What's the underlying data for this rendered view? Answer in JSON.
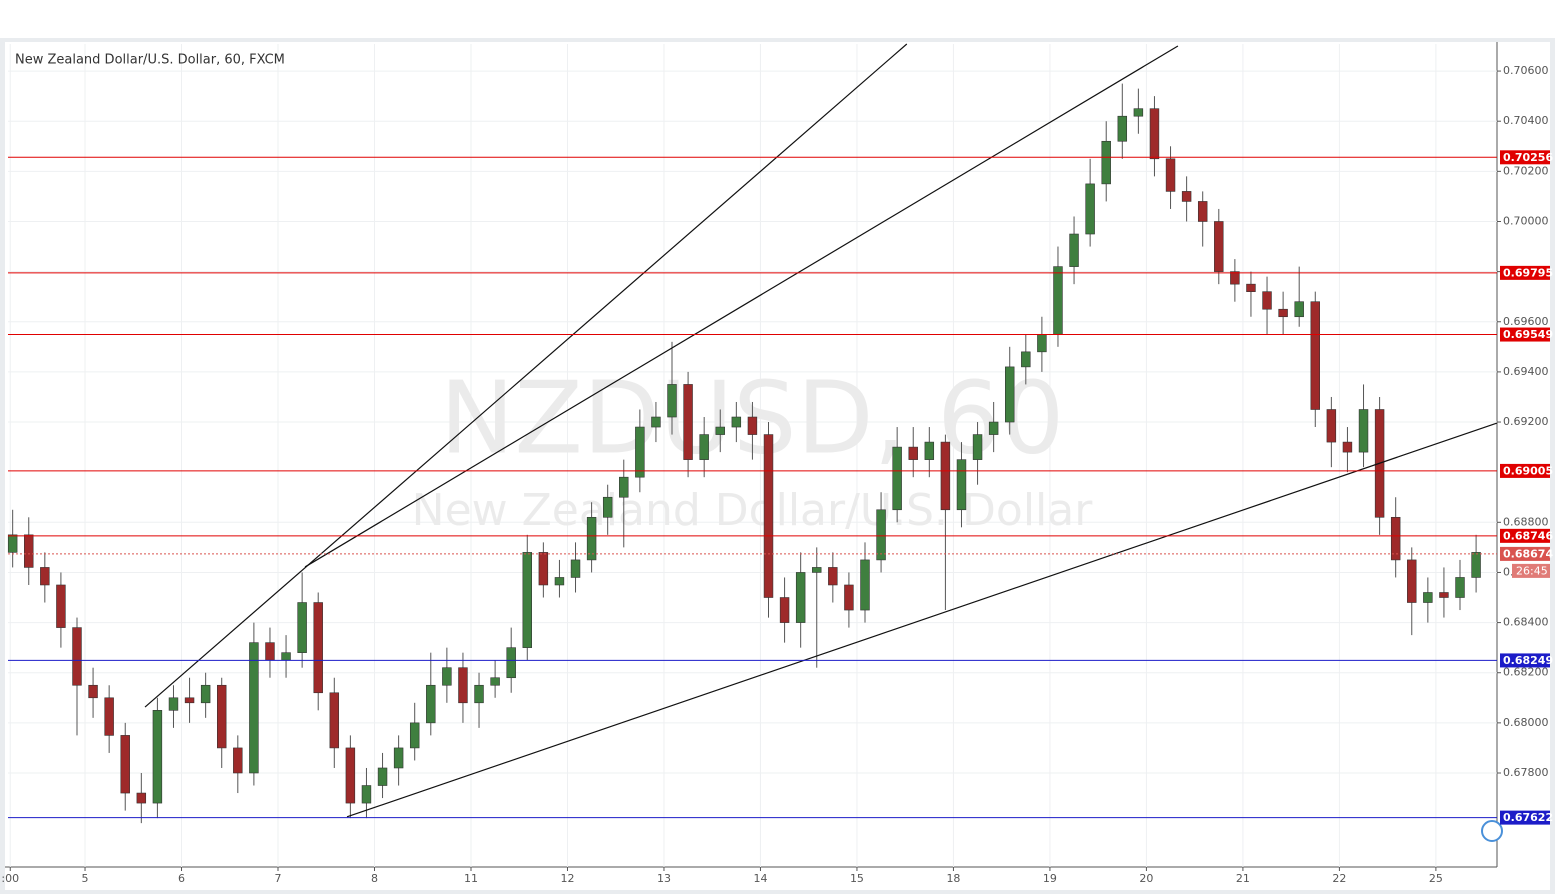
{
  "chart_data": {
    "type": "candlestick",
    "title": "New Zealand Dollar/U.S. Dollar, 60, FXCM",
    "watermark": "NZDUSD, 60",
    "watermark_subtitle": "New Zealand Dollar/U.S. Dollar",
    "up_color": "#3f7f3f",
    "down_color": "#9e2a2a",
    "grid": true,
    "xlim": [
      -0.29,
      92.3
    ],
    "ylim": [
      0.67425,
      0.70708
    ],
    "xticks": [
      {
        "value": -0.15,
        "label": ":00"
      },
      {
        "value": 4.5,
        "label": "5"
      },
      {
        "value": 10.5,
        "label": "6"
      },
      {
        "value": 16.5,
        "label": "7"
      },
      {
        "value": 22.5,
        "label": "8"
      },
      {
        "value": 28.5,
        "label": "11"
      },
      {
        "value": 34.5,
        "label": "12"
      },
      {
        "value": 40.5,
        "label": "13"
      },
      {
        "value": 46.5,
        "label": "14"
      },
      {
        "value": 52.5,
        "label": "15"
      },
      {
        "value": 58.5,
        "label": "18"
      },
      {
        "value": 64.5,
        "label": "19"
      },
      {
        "value": 70.5,
        "label": "20"
      },
      {
        "value": 76.5,
        "label": "21"
      },
      {
        "value": 82.5,
        "label": "22"
      },
      {
        "value": 88.5,
        "label": "25"
      }
    ],
    "yticks": [
      {
        "value": 0.706,
        "label": "0.70600"
      },
      {
        "value": 0.704,
        "label": "0.70400"
      },
      {
        "value": 0.702,
        "label": "0.70200"
      },
      {
        "value": 0.7,
        "label": "0.70000"
      },
      {
        "value": 0.698,
        "label": "0.69800"
      },
      {
        "value": 0.696,
        "label": "0.69600"
      },
      {
        "value": 0.694,
        "label": "0.69400"
      },
      {
        "value": 0.692,
        "label": "0.69200"
      },
      {
        "value": 0.688,
        "label": "0.68800"
      },
      {
        "value": 0.686,
        "label": "0."
      },
      {
        "value": 0.684,
        "label": "0.68400"
      },
      {
        "value": 0.682,
        "label": "0.68200"
      },
      {
        "value": 0.68,
        "label": "0.68000"
      },
      {
        "value": 0.678,
        "label": "0.67800"
      }
    ],
    "open": [
      0.6868,
      0.6875,
      0.6862,
      0.6855,
      0.6838,
      0.6815,
      0.681,
      0.6795,
      0.6772,
      0.6768,
      0.6805,
      0.681,
      0.6808,
      0.6815,
      0.679,
      0.678,
      0.6832,
      0.6825,
      0.6828,
      0.6848,
      0.6812,
      0.679,
      0.6768,
      0.6775,
      0.6782,
      0.679,
      0.68,
      0.6815,
      0.6822,
      0.6808,
      0.6815,
      0.6818,
      0.683,
      0.6868,
      0.6855,
      0.6858,
      0.6865,
      0.6882,
      0.689,
      0.6898,
      0.6918,
      0.6922,
      0.6935,
      0.6905,
      0.6915,
      0.6918,
      0.6922,
      0.6915,
      0.685,
      0.684,
      0.686,
      0.6862,
      0.6855,
      0.6845,
      0.6865,
      0.6885,
      0.691,
      0.6905,
      0.6912,
      0.6885,
      0.6905,
      0.6915,
      0.692,
      0.6942,
      0.6948,
      0.6955,
      0.6982,
      0.6995,
      0.7015,
      0.7032,
      0.7042,
      0.7045,
      0.7025,
      0.7012,
      0.7008,
      0.7,
      0.698,
      0.6975,
      0.6972,
      0.6965,
      0.6962,
      0.6968,
      0.6925,
      0.6912,
      0.6908,
      0.6925,
      0.6882,
      0.6865,
      0.6848,
      0.6852,
      0.685,
      0.6858
    ],
    "high": [
      0.6885,
      0.6882,
      0.6868,
      0.686,
      0.6842,
      0.6822,
      0.6815,
      0.68,
      0.678,
      0.681,
      0.6815,
      0.6818,
      0.682,
      0.6818,
      0.6795,
      0.684,
      0.6838,
      0.6835,
      0.686,
      0.6852,
      0.6818,
      0.6795,
      0.6782,
      0.6788,
      0.6795,
      0.6808,
      0.6828,
      0.683,
      0.6828,
      0.682,
      0.6825,
      0.6838,
      0.6875,
      0.6872,
      0.6865,
      0.6872,
      0.6888,
      0.6895,
      0.6905,
      0.6925,
      0.6928,
      0.6952,
      0.694,
      0.6922,
      0.6925,
      0.6928,
      0.6928,
      0.692,
      0.6858,
      0.6868,
      0.687,
      0.6868,
      0.686,
      0.6872,
      0.6892,
      0.6918,
      0.6918,
      0.6918,
      0.6915,
      0.6912,
      0.692,
      0.6928,
      0.695,
      0.6955,
      0.6962,
      0.699,
      0.7002,
      0.7025,
      0.704,
      0.7055,
      0.7053,
      0.705,
      0.703,
      0.7018,
      0.7012,
      0.7005,
      0.6985,
      0.698,
      0.6978,
      0.6972,
      0.6982,
      0.6972,
      0.693,
      0.6918,
      0.6935,
      0.693,
      0.689,
      0.687,
      0.6858,
      0.6862,
      0.6865,
      0.6875
    ],
    "low": [
      0.6862,
      0.6855,
      0.6848,
      0.683,
      0.6795,
      0.6802,
      0.6788,
      0.6765,
      0.676,
      0.6762,
      0.6798,
      0.68,
      0.6802,
      0.6782,
      0.6772,
      0.6775,
      0.6818,
      0.6818,
      0.6822,
      0.6805,
      0.6782,
      0.6762,
      0.6762,
      0.677,
      0.6775,
      0.6785,
      0.6795,
      0.6808,
      0.68,
      0.6798,
      0.681,
      0.6812,
      0.6825,
      0.685,
      0.685,
      0.6852,
      0.686,
      0.6875,
      0.687,
      0.6892,
      0.6912,
      0.6915,
      0.6898,
      0.6898,
      0.6908,
      0.6912,
      0.6905,
      0.6842,
      0.6832,
      0.683,
      0.6822,
      0.6848,
      0.6838,
      0.684,
      0.686,
      0.688,
      0.6898,
      0.6898,
      0.6845,
      0.6878,
      0.6895,
      0.6908,
      0.6915,
      0.6935,
      0.694,
      0.695,
      0.6975,
      0.699,
      0.7008,
      0.7025,
      0.7035,
      0.7018,
      0.7005,
      0.7,
      0.699,
      0.6975,
      0.6968,
      0.6962,
      0.6955,
      0.6955,
      0.6958,
      0.6918,
      0.6902,
      0.69,
      0.6902,
      0.6875,
      0.6858,
      0.6835,
      0.684,
      0.6842,
      0.6845,
      0.6852
    ],
    "close": [
      0.6875,
      0.6862,
      0.6855,
      0.6838,
      0.6815,
      0.681,
      0.6795,
      0.6772,
      0.6768,
      0.6805,
      0.681,
      0.6808,
      0.6815,
      0.679,
      0.678,
      0.6832,
      0.6825,
      0.6828,
      0.6848,
      0.6812,
      0.679,
      0.6768,
      0.6775,
      0.6782,
      0.679,
      0.68,
      0.6815,
      0.6822,
      0.6808,
      0.6815,
      0.6818,
      0.683,
      0.6868,
      0.6855,
      0.6858,
      0.6865,
      0.6882,
      0.689,
      0.6898,
      0.6918,
      0.6922,
      0.6935,
      0.6905,
      0.6915,
      0.6918,
      0.6922,
      0.6915,
      0.685,
      0.684,
      0.686,
      0.6862,
      0.6855,
      0.6845,
      0.6865,
      0.6885,
      0.691,
      0.6905,
      0.6912,
      0.6885,
      0.6905,
      0.6915,
      0.692,
      0.6942,
      0.6948,
      0.6955,
      0.6982,
      0.6995,
      0.7015,
      0.7032,
      0.7042,
      0.7045,
      0.7025,
      0.7012,
      0.7008,
      0.7,
      0.698,
      0.6975,
      0.6972,
      0.6965,
      0.6962,
      0.6968,
      0.6925,
      0.6912,
      0.6908,
      0.6925,
      0.6882,
      0.6865,
      0.6848,
      0.6852,
      0.685,
      0.6858,
      0.6868
    ],
    "levels": [
      {
        "value": 0.70256,
        "color": "#e00000",
        "dashed": false
      },
      {
        "value": 0.69795,
        "color": "#e00000",
        "dashed": false
      },
      {
        "value": 0.69549,
        "color": "#e00000",
        "dashed": false
      },
      {
        "value": 0.69005,
        "color": "#e00000",
        "dashed": false
      },
      {
        "value": 0.68746,
        "color": "#e00000",
        "dashed": false
      },
      {
        "value": 0.68674,
        "color": "#d9534f",
        "dashed": true
      },
      {
        "value": 0.68249,
        "color": "#1c1cc8",
        "dashed": false
      },
      {
        "value": 0.67622,
        "color": "#1c1cc8",
        "dashed": false
      }
    ],
    "countdown": "26:45",
    "trendlines": [
      {
        "x": [
          8.23,
          55.6
        ],
        "y": [
          0.68063,
          0.70708
        ]
      },
      {
        "x": [
          18.18,
          72.46
        ],
        "y": [
          0.68622,
          0.707
        ]
      },
      {
        "x": [
          20.79,
          92.3
        ],
        "y": [
          0.67625,
          0.69196
        ]
      }
    ]
  }
}
